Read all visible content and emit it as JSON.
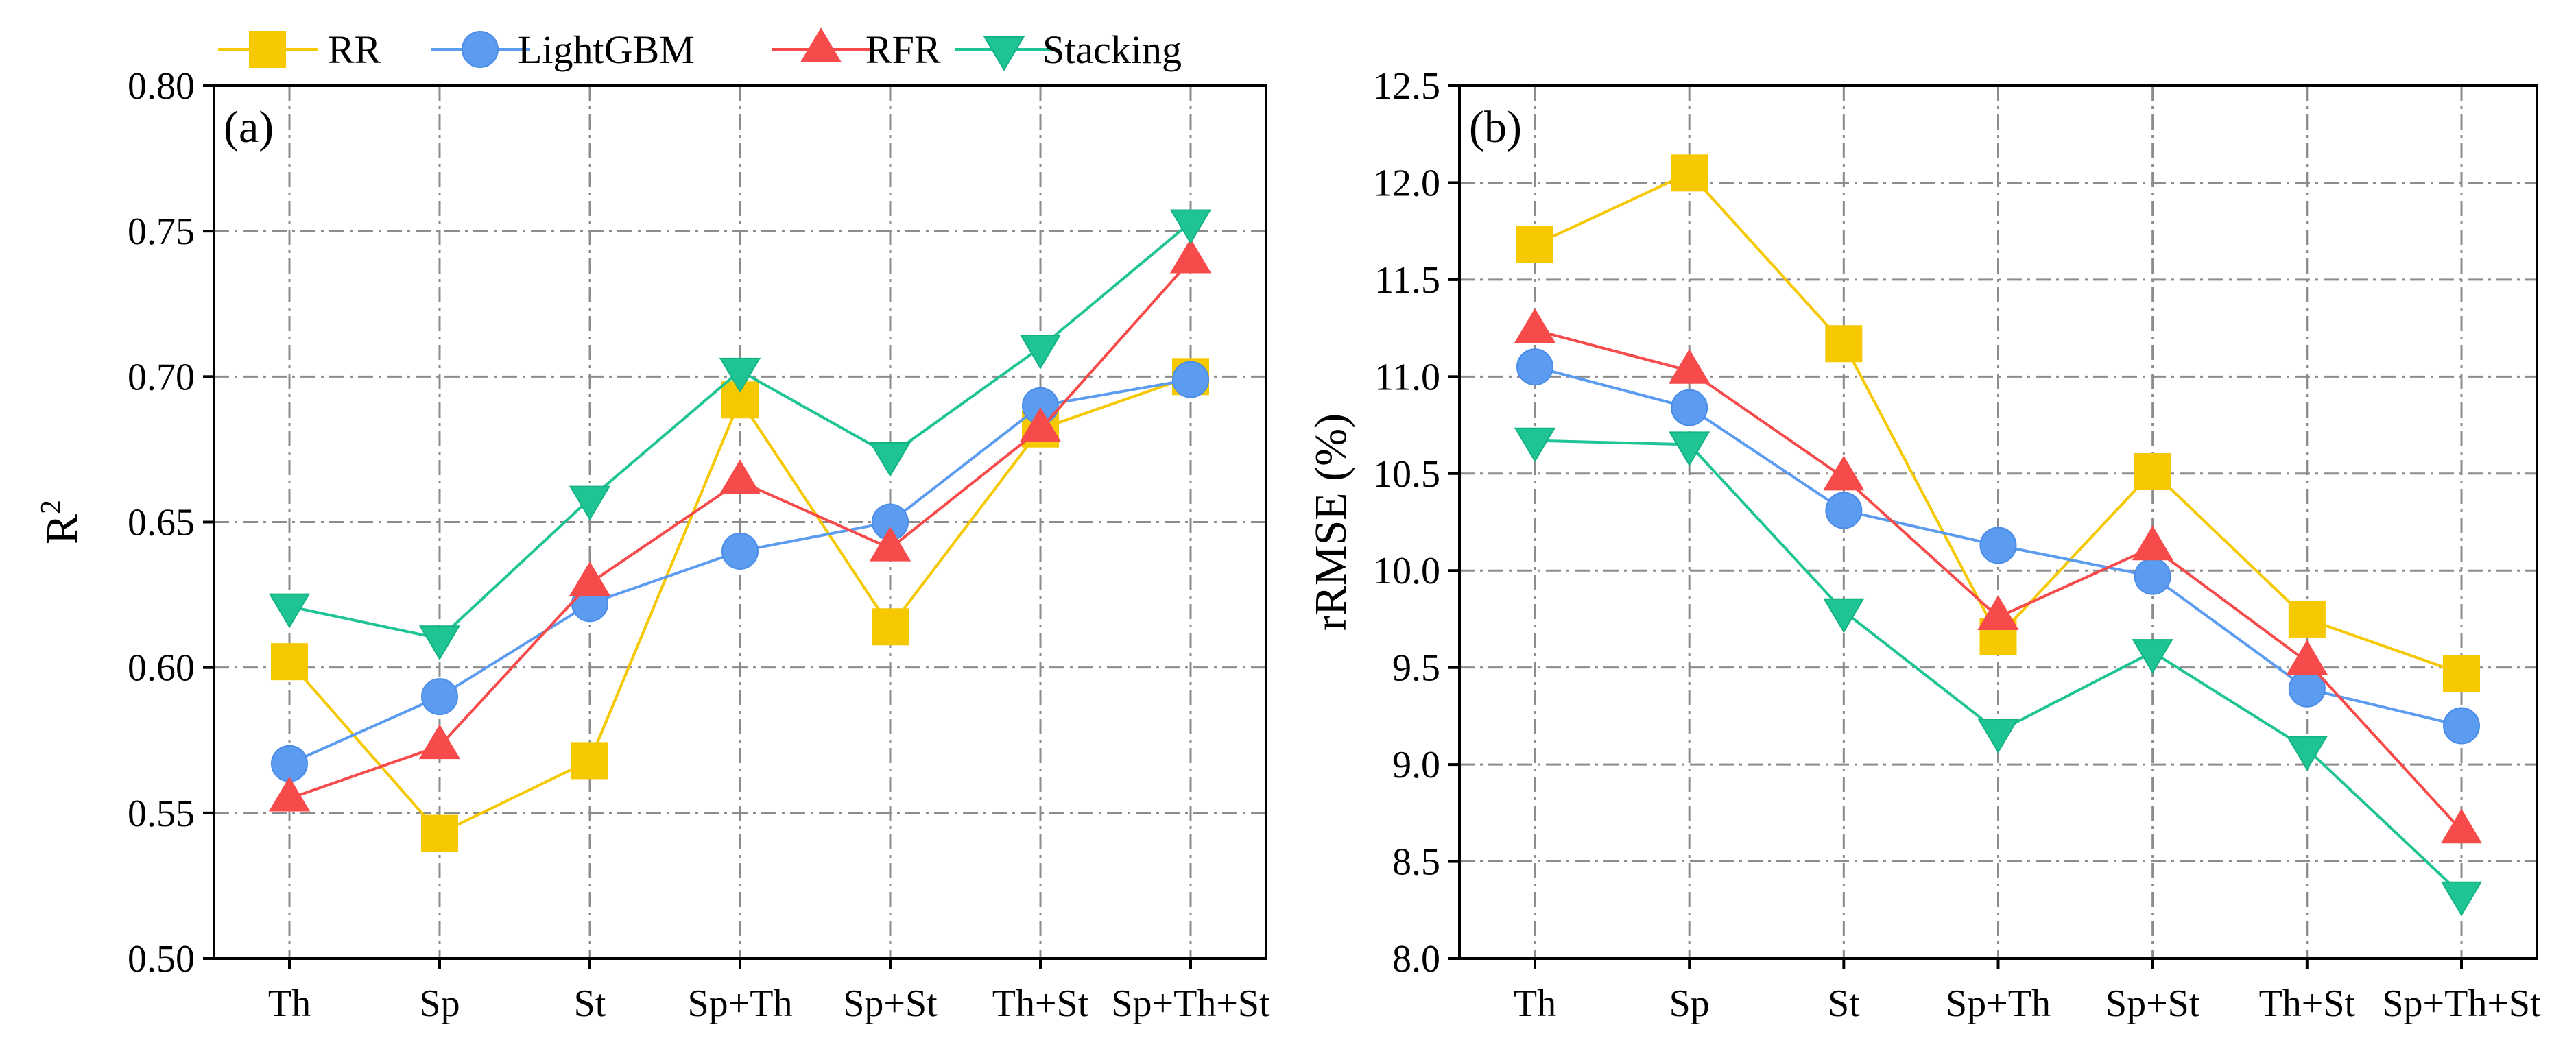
{
  "chart_data": [
    {
      "type": "line",
      "panel_label": "(a)",
      "ylabel_base": "R",
      "ylabel_sup": "2",
      "xlabel": "",
      "categories": [
        "Th",
        "Sp",
        "St",
        "Sp+Th",
        "Sp+St",
        "Th+St",
        "Sp+Th+St"
      ],
      "ylim": [
        0.5,
        0.8
      ],
      "yticks": [
        "0.50",
        "0.55",
        "0.60",
        "0.65",
        "0.70",
        "0.75",
        "0.80"
      ],
      "grid": true,
      "series": [
        {
          "name": "RR",
          "values": [
            0.602,
            0.543,
            0.568,
            0.692,
            0.614,
            0.682,
            0.7
          ]
        },
        {
          "name": "LightGBM",
          "values": [
            0.567,
            0.59,
            0.622,
            0.64,
            0.65,
            0.69,
            0.699
          ]
        },
        {
          "name": "RFR",
          "values": [
            0.555,
            0.573,
            0.629,
            0.664,
            0.641,
            0.682,
            0.74
          ]
        },
        {
          "name": "Stacking",
          "values": [
            0.621,
            0.61,
            0.658,
            0.702,
            0.673,
            0.71,
            0.753
          ]
        }
      ]
    },
    {
      "type": "line",
      "panel_label": "(b)",
      "ylabel": "rRMSE (%)",
      "xlabel": "",
      "categories": [
        "Th",
        "Sp",
        "St",
        "Sp+Th",
        "Sp+St",
        "Th+St",
        "Sp+Th+St"
      ],
      "ylim": [
        8.0,
        12.5
      ],
      "yticks": [
        "8.0",
        "8.5",
        "9.0",
        "9.5",
        "10.0",
        "10.5",
        "11.0",
        "11.5",
        "12.0",
        "12.5"
      ],
      "grid": true,
      "series": [
        {
          "name": "RR",
          "values": [
            11.68,
            12.05,
            11.17,
            9.66,
            10.51,
            9.75,
            9.47
          ]
        },
        {
          "name": "LightGBM",
          "values": [
            11.05,
            10.84,
            10.31,
            10.13,
            9.97,
            9.39,
            9.2
          ]
        },
        {
          "name": "RFR",
          "values": [
            11.24,
            11.03,
            10.48,
            9.76,
            10.12,
            9.53,
            8.66
          ]
        },
        {
          "name": "Stacking",
          "values": [
            10.67,
            10.65,
            9.79,
            9.17,
            9.58,
            9.08,
            8.33
          ]
        }
      ]
    }
  ],
  "legend": {
    "placement": "top-left",
    "entries": [
      "RR",
      "LightGBM",
      "RFR",
      "Stacking"
    ]
  },
  "styles": {
    "RR": {
      "color": "#f5c800",
      "edge": "#f5c800",
      "marker": "square"
    },
    "LightGBM": {
      "color": "#5b9cf0",
      "edge": "#4a8ce8",
      "marker": "circle"
    },
    "RFR": {
      "color": "#f74a4a",
      "edge": "#f74a4a",
      "marker": "triangle-up"
    },
    "Stacking": {
      "color": "#1ec493",
      "edge": "#14b384",
      "marker": "triangle-down"
    }
  }
}
